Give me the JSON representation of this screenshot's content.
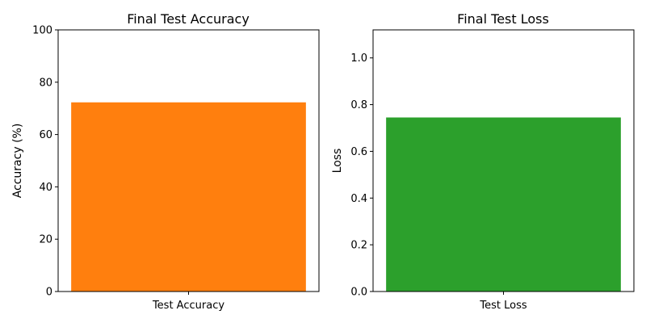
{
  "chart_data": [
    {
      "type": "bar",
      "title": "Final Test Accuracy",
      "xlabel": "",
      "ylabel": "Accuracy (%)",
      "categories": [
        "Test Accuracy"
      ],
      "values": [
        72.3
      ],
      "ylim": [
        0,
        100
      ],
      "yticks": [
        0,
        20,
        40,
        60,
        80,
        100
      ],
      "ytick_decimals": 0,
      "color": "#ff7f0e",
      "grid": false,
      "legend": "none"
    },
    {
      "type": "bar",
      "title": "Final Test Loss",
      "xlabel": "",
      "ylabel": "Loss",
      "categories": [
        "Test Loss"
      ],
      "values": [
        0.745
      ],
      "ylim": [
        0,
        1.12
      ],
      "yticks": [
        0.0,
        0.2,
        0.4,
        0.6,
        0.8,
        1.0
      ],
      "ytick_decimals": 1,
      "color": "#2ca02c",
      "grid": false,
      "legend": "none"
    }
  ]
}
